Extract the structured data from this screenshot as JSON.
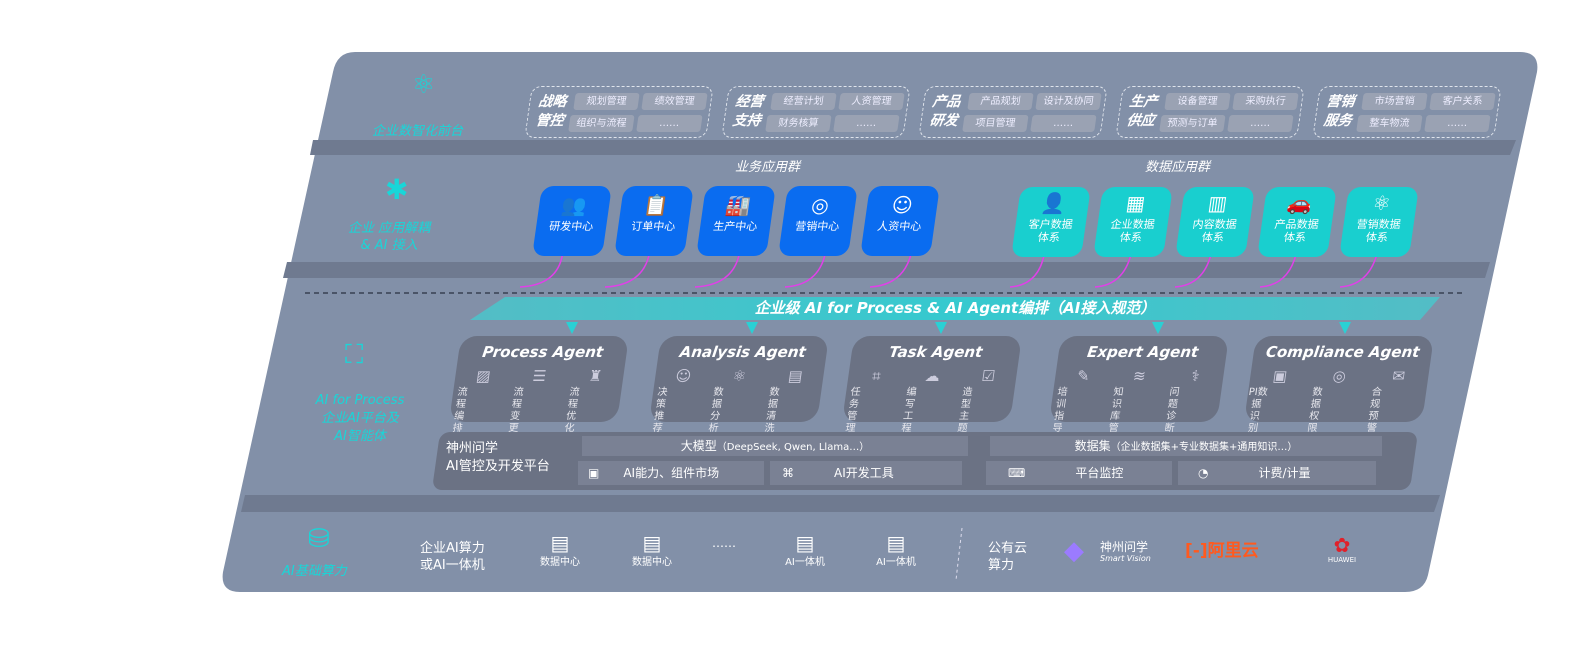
{
  "front": {
    "label": "企业数智化前台",
    "groups": [
      {
        "title": [
          "战略",
          "管控"
        ],
        "items": [
          "规划管理",
          "绩效管理",
          "组织与流程",
          "……"
        ]
      },
      {
        "title": [
          "经营",
          "支持"
        ],
        "items": [
          "经营计划",
          "人资管理",
          "财务核算",
          "……"
        ]
      },
      {
        "title": [
          "产品",
          "研发"
        ],
        "items": [
          "产品规划",
          "设计及协同",
          "项目管理",
          "……"
        ]
      },
      {
        "title": [
          "生产",
          "供应"
        ],
        "items": [
          "设备管理",
          "采购执行",
          "预测与订单",
          "……"
        ]
      },
      {
        "title": [
          "营销",
          "服务"
        ],
        "items": [
          "市场营销",
          "客户关系",
          "整车物流",
          "……"
        ]
      }
    ]
  },
  "apps": {
    "label": [
      "企业 应用解耦",
      "& AI 接入"
    ],
    "biz_title": "业务应用群",
    "data_title": "数据应用群",
    "biz": [
      "研发中心",
      "订单中心",
      "生产中心",
      "营销中心",
      "人资中心"
    ],
    "data": [
      [
        "客户数据",
        "体系"
      ],
      [
        "企业数据",
        "体系"
      ],
      [
        "内容数据",
        "体系"
      ],
      [
        "产品数据",
        "体系"
      ],
      [
        "营销数据",
        "体系"
      ]
    ]
  },
  "orchestration": "企业级 AI for Process & AI Agent编排（AI接入规范）",
  "ai": {
    "label": [
      "AI for Process",
      "企业AI平台及",
      "AI智能体"
    ],
    "agents": [
      {
        "name": "Process Agent",
        "items": [
          "流程编排",
          "流程变更分析",
          "流程优化"
        ]
      },
      {
        "name": "Analysis Agent",
        "items": [
          "决策推荐",
          "数据分析",
          "数据清洗"
        ]
      },
      {
        "name": "Task Agent",
        "items": [
          "任务管理",
          "编写工程设计方案",
          "造型主题设计"
        ]
      },
      {
        "name": "Expert Agent",
        "items": [
          "培训指导",
          "知识库管理",
          "问题诊断"
        ]
      },
      {
        "name": "Compliance Agent",
        "items": [
          "PI数据识别",
          "数据权限＆安全",
          "合规预警"
        ]
      }
    ],
    "platform": {
      "name": [
        "神州问学",
        "AI管控及开发平台"
      ],
      "model": "大模型",
      "model_note": "（DeepSeek, Qwen, Llama…）",
      "dataset": "数据集",
      "dataset_note": "（企业数据集+专业数据集+通用知识…）",
      "cells": [
        "AI能力、组件市场",
        "AI开发工具",
        "平台监控",
        "计费/计量"
      ]
    }
  },
  "infra": {
    "label": "AI基础算力",
    "enterprise": [
      "企业AI算力",
      "或AI一体机"
    ],
    "servers": [
      "数据中心",
      "数据中心",
      "AI一体机",
      "AI一体机"
    ],
    "ellipsis": "……",
    "cloud": [
      "公有云",
      "算力"
    ],
    "vendors": {
      "shenzhou": "神州问学",
      "shenzhou_sub": "Smart Vision",
      "aliyun": "阿里云",
      "huawei": "HUAWEI"
    }
  },
  "colors": {
    "panel": "#8290a8",
    "blue": "#0a6cf0",
    "teal": "#19d6d8",
    "arrow": "#e040e8"
  }
}
